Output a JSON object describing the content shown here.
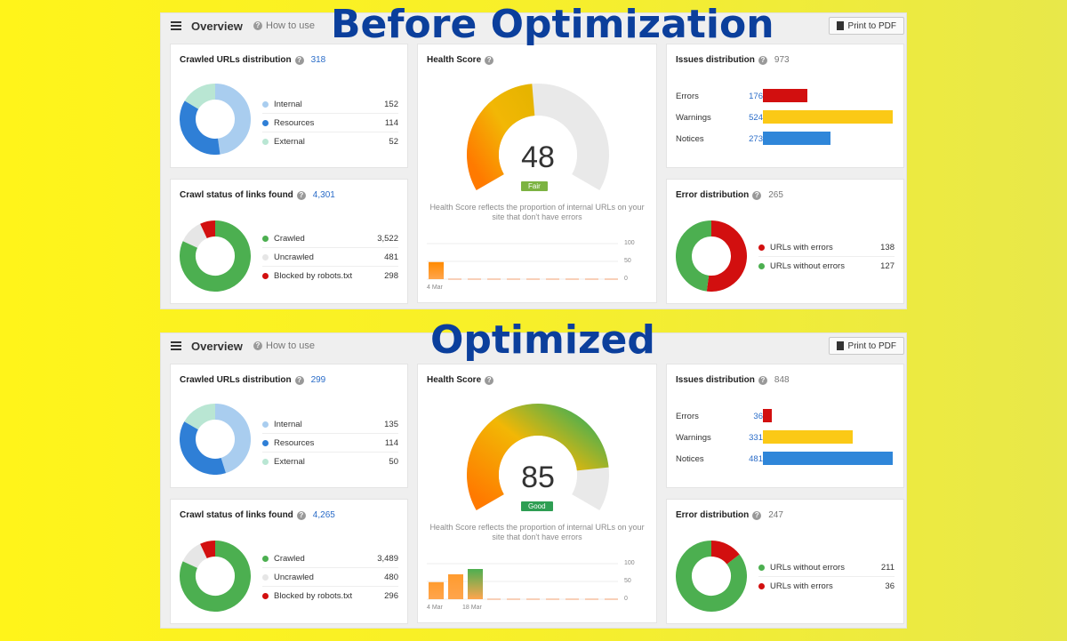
{
  "headings": {
    "before": "Before Optimization",
    "after": "Optimized"
  },
  "before": {
    "overview": "Overview",
    "how_to_use": "How to use",
    "print_pdf": "Print to PDF",
    "crawled": {
      "title": "Crawled URLs distribution",
      "count": "318",
      "items": [
        {
          "label": "Internal",
          "value": "152",
          "color": "#a9cdef"
        },
        {
          "label": "Resources",
          "value": "114",
          "color": "#2f7fd6"
        },
        {
          "label": "External",
          "value": "52",
          "color": "#b9e6d3"
        }
      ]
    },
    "crawl_status": {
      "title": "Crawl status of links found",
      "count": "4,301",
      "items": [
        {
          "label": "Crawled",
          "value": "3,522",
          "color": "#4caf50"
        },
        {
          "label": "Uncrawled",
          "value": "481",
          "color": "#e6e6e6"
        },
        {
          "label": "Blocked by robots.txt",
          "value": "298",
          "color": "#d20f0f"
        }
      ]
    },
    "health": {
      "title": "Health Score",
      "score": "48",
      "badge": "Fair",
      "badge_color": "#7cb342",
      "description": "Health Score reflects the proportion of internal URLs on your site that don't have errors",
      "axis": [
        "100",
        "50",
        "0"
      ],
      "dates": [
        "4 Mar"
      ],
      "history": [
        48
      ]
    },
    "issues": {
      "title": "Issues distribution",
      "count": "973",
      "items": [
        {
          "label": "Errors",
          "value": "176",
          "color": "#d20f0f",
          "share": 0.34
        },
        {
          "label": "Warnings",
          "value": "524",
          "color": "#fbc916",
          "share": 1.0
        },
        {
          "label": "Notices",
          "value": "273",
          "color": "#2f86d9",
          "share": 0.52
        }
      ]
    },
    "errors": {
      "title": "Error distribution",
      "count": "265",
      "items": [
        {
          "label": "URLs with errors",
          "value": "138",
          "color": "#d20f0f"
        },
        {
          "label": "URLs without errors",
          "value": "127",
          "color": "#4caf50"
        }
      ]
    }
  },
  "after": {
    "overview": "Overview",
    "how_to_use": "How to use",
    "print_pdf": "Print to PDF",
    "crawled": {
      "title": "Crawled URLs distribution",
      "count": "299",
      "items": [
        {
          "label": "Internal",
          "value": "135",
          "color": "#a9cdef"
        },
        {
          "label": "Resources",
          "value": "114",
          "color": "#2f7fd6"
        },
        {
          "label": "External",
          "value": "50",
          "color": "#b9e6d3"
        }
      ]
    },
    "crawl_status": {
      "title": "Crawl status of links found",
      "count": "4,265",
      "items": [
        {
          "label": "Crawled",
          "value": "3,489",
          "color": "#4caf50"
        },
        {
          "label": "Uncrawled",
          "value": "480",
          "color": "#e6e6e6"
        },
        {
          "label": "Blocked by robots.txt",
          "value": "296",
          "color": "#d20f0f"
        }
      ]
    },
    "health": {
      "title": "Health Score",
      "score": "85",
      "badge": "Good",
      "badge_color": "#2e9e53",
      "description": "Health Score reflects the proportion of internal URLs on your site that don't have errors",
      "axis": [
        "100",
        "50",
        "0"
      ],
      "dates": [
        "4 Mar",
        "18 Mar"
      ],
      "history": [
        48,
        70,
        85
      ]
    },
    "issues": {
      "title": "Issues distribution",
      "count": "848",
      "items": [
        {
          "label": "Errors",
          "value": "36",
          "color": "#d20f0f",
          "share": 0.07
        },
        {
          "label": "Warnings",
          "value": "331",
          "color": "#fbc916",
          "share": 0.69
        },
        {
          "label": "Notices",
          "value": "481",
          "color": "#2f86d9",
          "share": 1.0
        }
      ]
    },
    "errors": {
      "title": "Error distribution",
      "count": "247",
      "items": [
        {
          "label": "URLs without errors",
          "value": "211",
          "color": "#4caf50"
        },
        {
          "label": "URLs with errors",
          "value": "36",
          "color": "#d20f0f"
        }
      ]
    }
  }
}
